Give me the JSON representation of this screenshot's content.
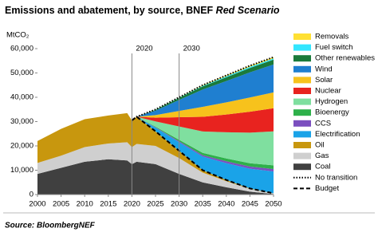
{
  "chart_data": {
    "type": "stacked_area",
    "title": "Emissions and abatement, by source, BNEF",
    "title_italic": "Red Scenario",
    "y_label": "MtCO₂",
    "source": "Source: BloombergNEF",
    "x": [
      2000,
      2005,
      2010,
      2015,
      2019,
      2020,
      2021,
      2025,
      2030,
      2035,
      2040,
      2045,
      2050
    ],
    "xlim": [
      2000,
      2050
    ],
    "xticks": [
      2000,
      2005,
      2010,
      2015,
      2020,
      2025,
      2030,
      2035,
      2040,
      2045,
      2050
    ],
    "ylim": [
      0,
      60000
    ],
    "yticks": [
      0,
      {
        "value": 10000,
        "label": "10,000"
      },
      {
        "value": 20000,
        "label": "20,000"
      },
      {
        "value": 30000,
        "label": "30,000"
      },
      {
        "value": 40000,
        "label": "40,000"
      },
      {
        "value": 50000,
        "label": "50,000"
      },
      {
        "value": 60000,
        "label": "60,000"
      }
    ],
    "vlines": [
      2020,
      2030
    ],
    "series": [
      {
        "name": "Coal",
        "color": "#404040",
        "values": [
          8500,
          11000,
          13500,
          14500,
          14000,
          12500,
          13500,
          12500,
          8500,
          5000,
          3000,
          1200,
          200
        ]
      },
      {
        "name": "Gas",
        "color": "#cfcfcf",
        "values": [
          4500,
          5000,
          6000,
          6500,
          7500,
          7000,
          7300,
          7500,
          6500,
          4000,
          2500,
          1100,
          250
        ]
      },
      {
        "name": "Oil",
        "color": "#c8970e",
        "values": [
          9000,
          11000,
          11500,
          11500,
          12000,
          11000,
          11200,
          6000,
          3000,
          1000,
          500,
          200,
          50
        ]
      },
      {
        "name": "Electrification",
        "color": "#1aa3e8",
        "values": [
          null,
          null,
          null,
          null,
          null,
          0,
          0,
          1500,
          3500,
          5600,
          6900,
          8100,
          9000
        ]
      },
      {
        "name": "CCS",
        "color": "#7b4fbf",
        "values": [
          null,
          null,
          null,
          null,
          null,
          0,
          0,
          150,
          400,
          600,
          800,
          900,
          1000
        ]
      },
      {
        "name": "Bioenergy",
        "color": "#2eb04a",
        "values": [
          null,
          null,
          null,
          null,
          null,
          0,
          0,
          250,
          600,
          950,
          1150,
          1350,
          1500
        ]
      },
      {
        "name": "Hydrogen",
        "color": "#7fdf9f",
        "values": [
          null,
          null,
          null,
          null,
          null,
          0,
          0,
          2200,
          5500,
          8800,
          10750,
          12600,
          14000
        ]
      },
      {
        "name": "Nuclear",
        "color": "#e8231f",
        "values": [
          null,
          null,
          null,
          null,
          null,
          0,
          0,
          1500,
          3800,
          6000,
          7300,
          8600,
          9500
        ]
      },
      {
        "name": "Solar",
        "color": "#f7c21c",
        "values": [
          null,
          null,
          null,
          null,
          null,
          0,
          0,
          1050,
          2600,
          4100,
          5000,
          5850,
          6500
        ]
      },
      {
        "name": "Wind",
        "color": "#1f7fd0",
        "values": [
          null,
          null,
          null,
          null,
          null,
          0,
          0,
          1850,
          4500,
          7150,
          8800,
          10350,
          11500
        ]
      },
      {
        "name": "Other renewables",
        "color": "#1a7a3a",
        "values": [
          null,
          null,
          null,
          null,
          null,
          0,
          0,
          300,
          800,
          1250,
          1550,
          1800,
          2000
        ]
      },
      {
        "name": "Fuel switch",
        "color": "#33e6ff",
        "values": [
          null,
          null,
          null,
          null,
          null,
          0,
          0,
          100,
          200,
          300,
          400,
          500,
          500
        ]
      },
      {
        "name": "Removals",
        "color": "#ffe033",
        "values": [
          null,
          null,
          null,
          null,
          null,
          0,
          0,
          100,
          100,
          250,
          350,
          450,
          500
        ]
      }
    ],
    "lines": [
      {
        "name": "No transition",
        "color": "#000000",
        "style": "dotted",
        "values": [
          null,
          null,
          null,
          null,
          null,
          30500,
          32000,
          35000,
          40000,
          45000,
          49000,
          53000,
          56500
        ]
      },
      {
        "name": "Budget",
        "color": "#000000",
        "style": "dashed",
        "values": [
          null,
          null,
          null,
          null,
          null,
          30500,
          32000,
          26000,
          18000,
          10000,
          6000,
          2500,
          500
        ]
      }
    ]
  }
}
